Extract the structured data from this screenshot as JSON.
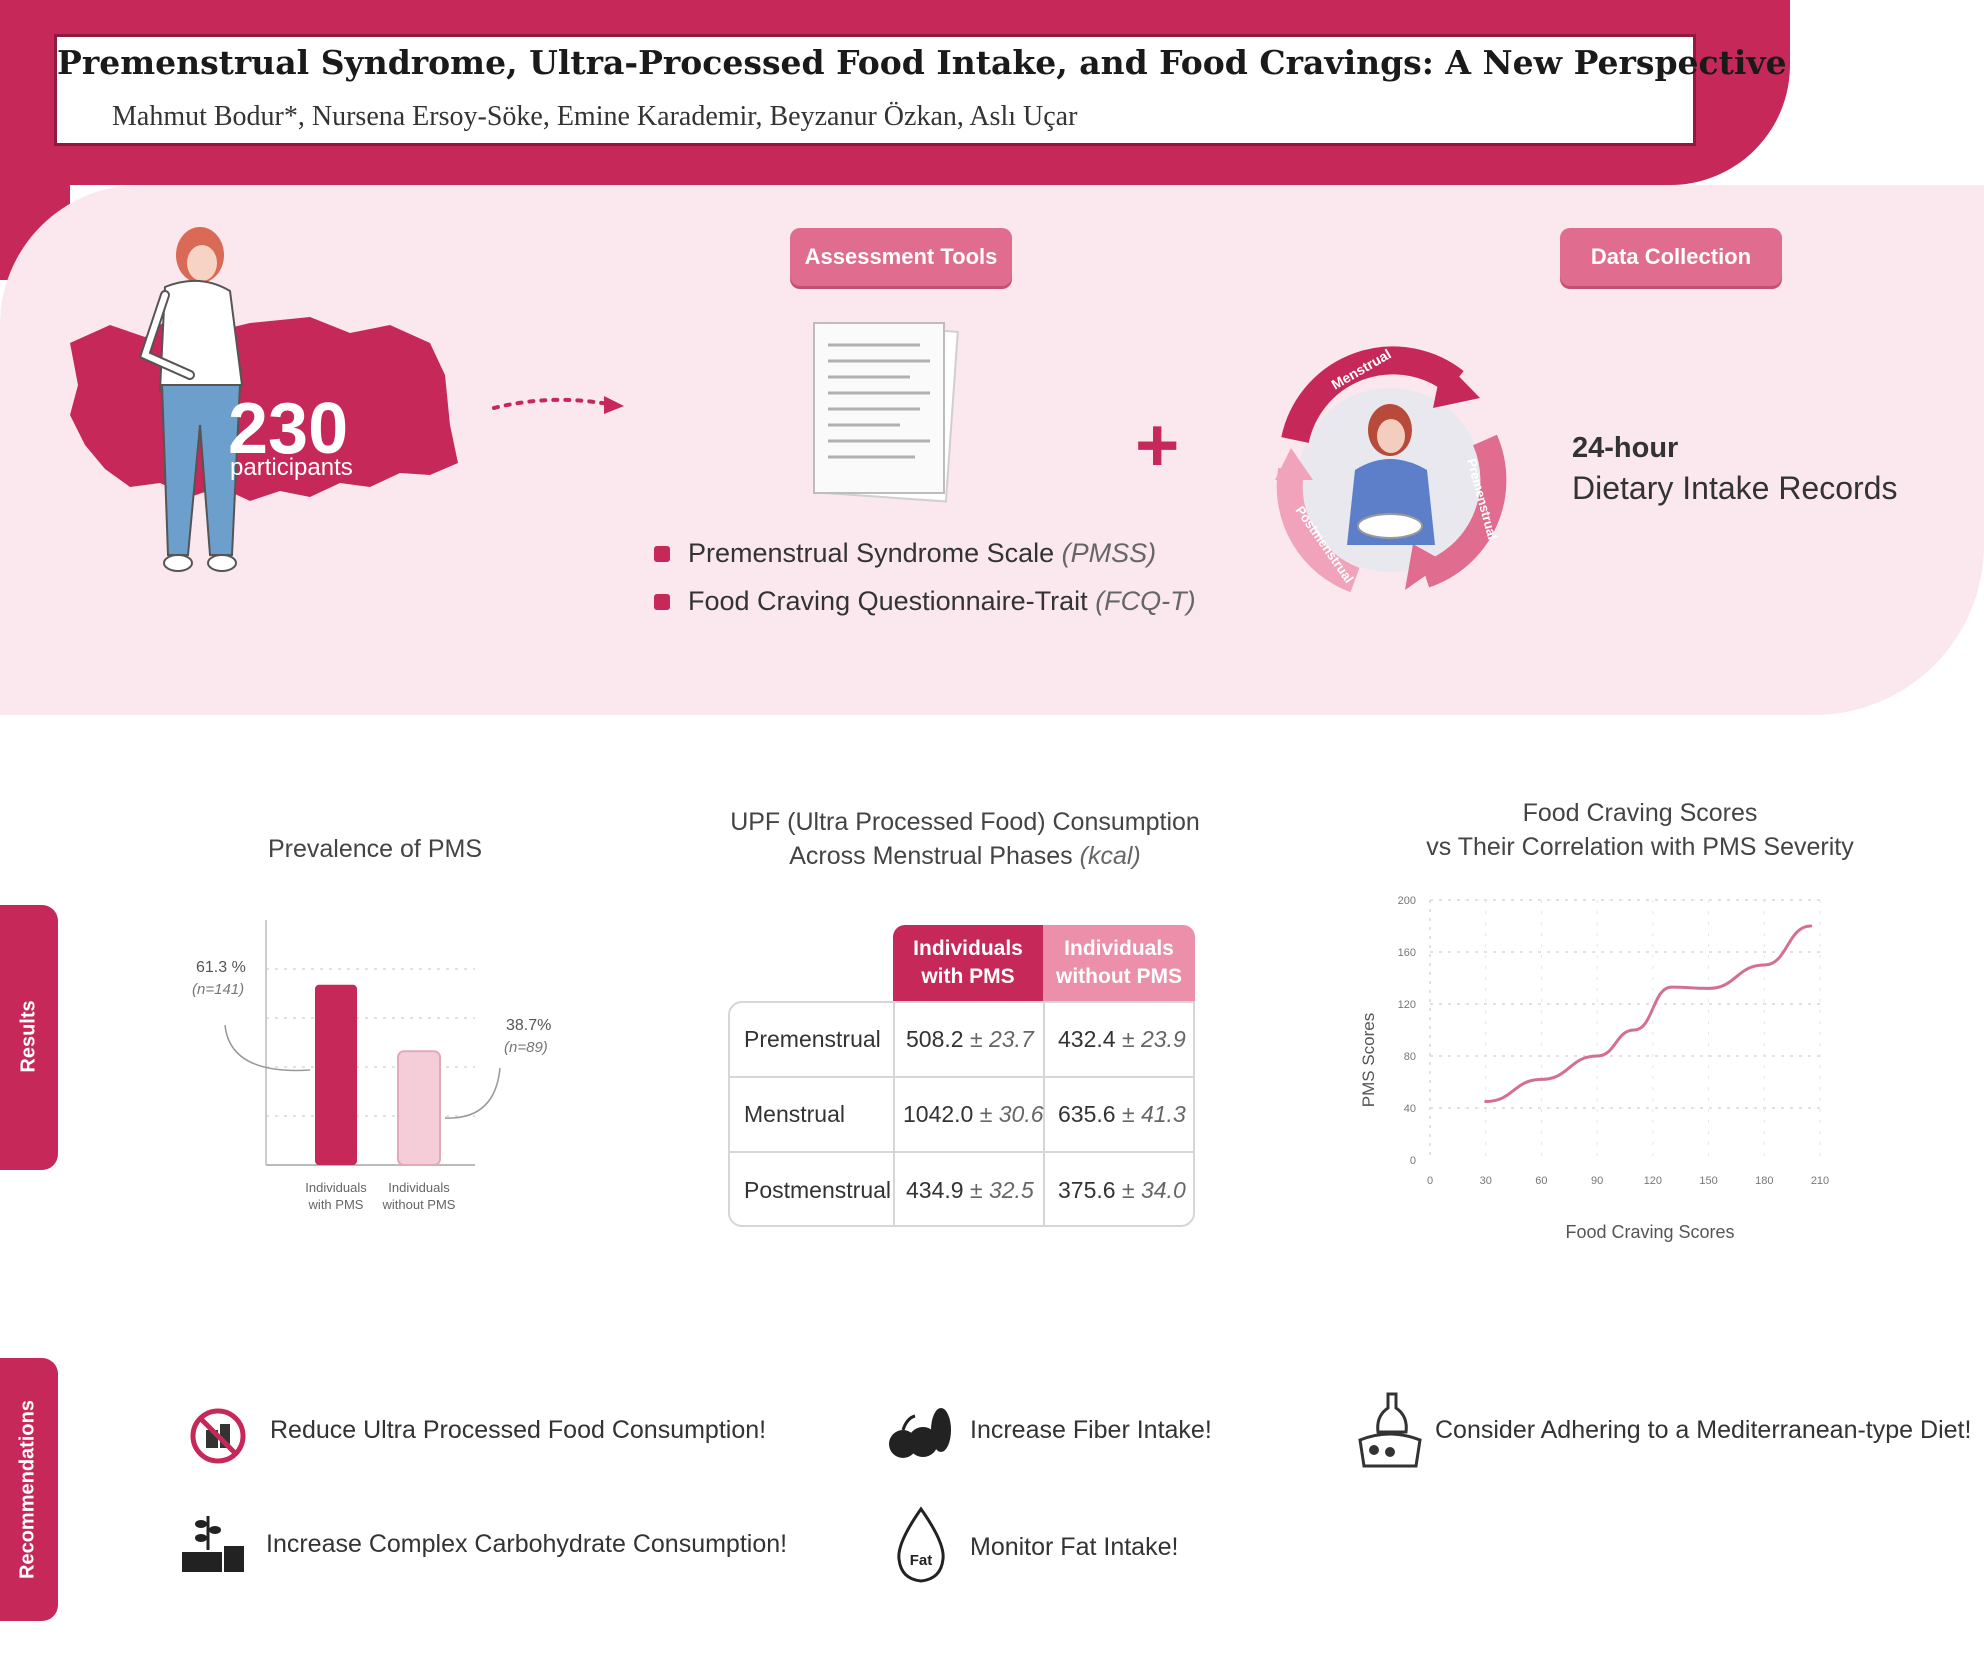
{
  "header": {
    "title": "Premenstrual Syndrome, Ultra-Processed Food Intake, and Food Cravings: A New Perspective",
    "authors": "Mahmut Bodur*,  Nursena Ersoy-Söke, Emine Karademir, Beyzanur Özkan, Aslı Uçar"
  },
  "study": {
    "participants_count": "230",
    "participants_label": "participants",
    "assessment_pill": "Assessment Tools",
    "data_pill": "Data Collection",
    "tools": [
      {
        "name": "Premenstrual Syndrome Scale ",
        "abbr": "(PMSS)"
      },
      {
        "name": "Food Craving Questionnaire-Trait ",
        "abbr": "(FCQ-T)"
      }
    ],
    "plus_symbol": "+",
    "cycle_labels": [
      "Menstrual",
      "Premenstrual",
      "Postmenstrual"
    ],
    "record_line1": "24-hour",
    "record_line2": "Dietary Intake Records"
  },
  "sections": {
    "results_label": "Results",
    "recommendations_label": "Recommendations"
  },
  "prevalence": {
    "title": "Prevalence of PMS",
    "labels": [
      {
        "pct": "61.3 %",
        "n": "(n=141)"
      },
      {
        "pct": "38.7%",
        "n": "(n=89)"
      }
    ]
  },
  "upf": {
    "title_line1": "UPF (Ultra Processed Food) Consumption",
    "title_line2": "Across Menstrual Phases ",
    "title_unit": "(kcal)",
    "col_headers": [
      [
        "Individuals",
        "with PMS"
      ],
      [
        "Individuals",
        "without PMS"
      ]
    ],
    "rows": [
      {
        "phase": "Premenstrual",
        "with_mean": "508.2",
        "with_sd": "± 23.7",
        "without_mean": "432.4",
        "without_sd": "± 23.9"
      },
      {
        "phase": "Menstrual",
        "with_mean": "1042.0",
        "with_sd": "± 30.6",
        "without_mean": "635.6",
        "without_sd": "± 41.3"
      },
      {
        "phase": "Postmenstrual",
        "with_mean": "434.9",
        "with_sd": "± 32.5",
        "without_mean": "375.6",
        "without_sd": "± 34.0"
      }
    ]
  },
  "craving": {
    "title_line1": "Food Craving Scores",
    "title_line2": "vs Their Correlation with PMS Severity"
  },
  "chart_data": [
    {
      "type": "bar",
      "title": "Prevalence of PMS",
      "categories": [
        "Individuals with PMS",
        "Individuals without PMS"
      ],
      "values": [
        61.3,
        38.7
      ],
      "data_labels": [
        "61.3 % (n=141)",
        "38.7% (n=89)"
      ],
      "colors": [
        "#c7285a",
        "#f5cdd9"
      ],
      "ylim": [
        0,
        100
      ],
      "grid": true
    },
    {
      "type": "line",
      "title": "Food Craving Scores vs Their Correlation with PMS Severity",
      "xlabel": "Food Craving Scores",
      "ylabel": "PMS Scores",
      "x_ticks": [
        "0",
        "30",
        "60",
        "90",
        "120",
        "150",
        "180",
        "210"
      ],
      "y_ticks": [
        "0",
        "40",
        "80",
        "120",
        "160",
        "200"
      ],
      "xlim": [
        0,
        210
      ],
      "ylim": [
        0,
        200
      ],
      "grid": true,
      "series": [
        {
          "x": [
            30,
            60,
            90,
            110,
            130,
            150,
            180,
            205
          ],
          "y": [
            45,
            62,
            80,
            100,
            133,
            132,
            150,
            180
          ],
          "color": "#d4708f"
        }
      ]
    }
  ],
  "recommendations": [
    {
      "icon": "no-processed-food-icon",
      "text": "Reduce Ultra Processed Food Consumption!"
    },
    {
      "icon": "fiber-foods-icon",
      "text": "Increase Fiber Intake!"
    },
    {
      "icon": "mediterranean-diet-icon",
      "text": "Consider Adhering to a Mediterranean-type Diet!"
    },
    {
      "icon": "complex-carbohydrate-icon",
      "text": "Increase Complex Carbohydrate Consumption!"
    },
    {
      "icon": "fat-drop-icon",
      "text": "Monitor Fat Intake!"
    }
  ],
  "fat_icon_text": "Fat",
  "colors": {
    "accent": "#c7285a",
    "light_accent": "#e06c8f",
    "band": "#fbe8ee",
    "line": "#d4708f"
  }
}
